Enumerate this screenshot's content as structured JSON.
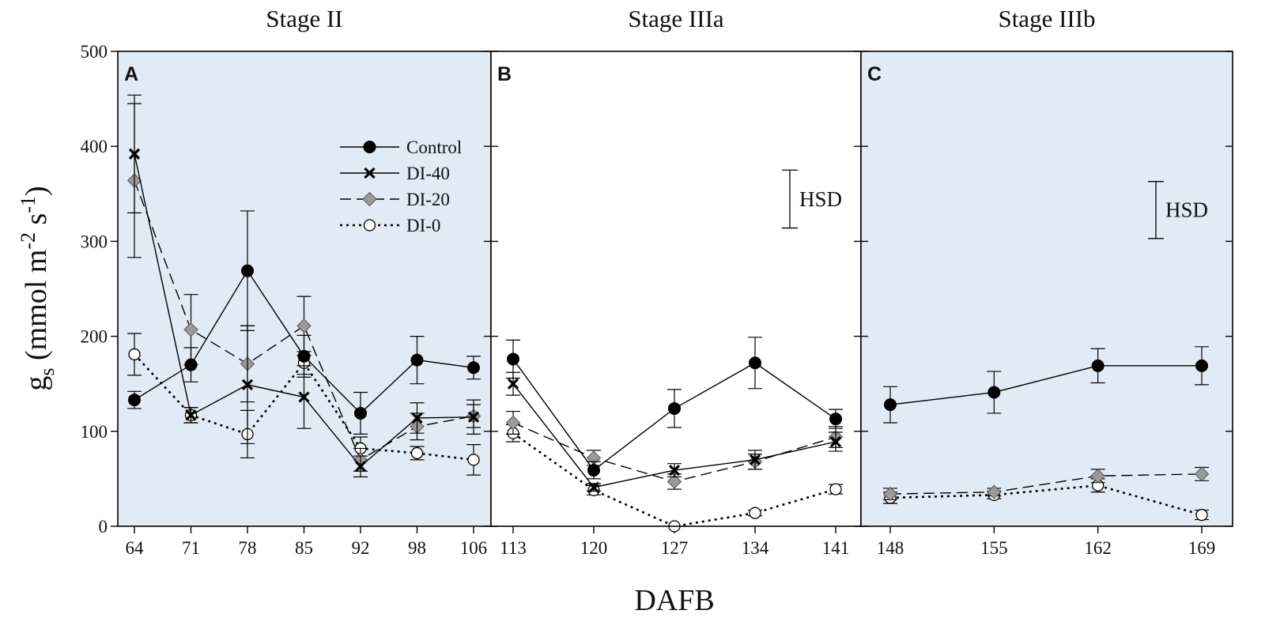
{
  "figure": {
    "y_axis_label": "g",
    "y_axis_label_sub": "s",
    "y_axis_units": "(mmol m",
    "y_axis_units_exp1": "-2",
    "y_axis_units_mid": " s",
    "y_axis_units_exp2": "-1",
    "y_axis_units_close": ")",
    "x_axis_label": "DAFB",
    "hsd_label": "HSD",
    "colors": {
      "panel_shade": "#e1ebf6",
      "marker_gray": "#9a9a9a",
      "line": "#111111"
    }
  },
  "chart_data": [
    {
      "type": "line",
      "panel": "A",
      "title": "Stage II",
      "shaded": true,
      "x": [
        64,
        71,
        78,
        85,
        92,
        98,
        106
      ],
      "ylim": [
        0,
        500
      ],
      "yticks": [
        0,
        100,
        200,
        300,
        400,
        500
      ],
      "series": [
        {
          "name": "Control",
          "values": [
            133,
            170,
            269,
            179,
            119,
            175,
            167
          ],
          "errors": [
            9,
            18,
            63,
            22,
            22,
            25,
            12
          ]
        },
        {
          "name": "DI-40",
          "values": [
            392,
            117,
            149,
            136,
            63,
            114,
            115
          ],
          "errors": [
            62,
            8,
            62,
            33,
            11,
            16,
            18
          ]
        },
        {
          "name": "DI-20",
          "values": [
            364,
            207,
            171,
            211,
            70,
            105,
            116
          ],
          "errors": [
            81,
            37,
            40,
            31,
            12,
            14,
            12
          ]
        },
        {
          "name": "DI-0",
          "values": [
            181,
            117,
            97,
            172,
            82,
            77,
            70
          ],
          "errors": [
            22,
            8,
            25,
            12,
            12,
            7,
            16
          ]
        }
      ],
      "legend": [
        "Control",
        "DI-40",
        "DI-20",
        "DI-0"
      ],
      "legend_position": "top-right"
    },
    {
      "type": "line",
      "panel": "B",
      "title": "Stage IIIa",
      "shaded": false,
      "x": [
        113,
        120,
        127,
        134,
        141
      ],
      "ylim": [
        0,
        500
      ],
      "hsd": [
        314,
        375
      ],
      "series": [
        {
          "name": "Control",
          "values": [
            176,
            59,
            124,
            172,
            113
          ],
          "errors": [
            20,
            9,
            20,
            27,
            10
          ]
        },
        {
          "name": "DI-40",
          "values": [
            150,
            41,
            59,
            70,
            89
          ],
          "errors": [
            12,
            4,
            7,
            10,
            10
          ]
        },
        {
          "name": "DI-20",
          "values": [
            109,
            72,
            47,
            68,
            94
          ],
          "errors": [
            12,
            8,
            8,
            8,
            11
          ]
        },
        {
          "name": "DI-0",
          "values": [
            98,
            38,
            0,
            14,
            39
          ],
          "errors": [
            9,
            5,
            0,
            3,
            5
          ]
        }
      ]
    },
    {
      "type": "line",
      "panel": "C",
      "title": "Stage IIIb",
      "shaded": true,
      "x": [
        148,
        155,
        162,
        169
      ],
      "ylim": [
        0,
        500
      ],
      "hsd": [
        303,
        363
      ],
      "series": [
        {
          "name": "Control",
          "values": [
            128,
            141,
            169,
            169
          ],
          "errors": [
            19,
            22,
            18,
            20
          ]
        },
        {
          "name": "DI-20",
          "values": [
            34,
            36,
            53,
            55
          ],
          "errors": [
            6,
            4,
            7,
            7
          ]
        },
        {
          "name": "DI-0",
          "values": [
            30,
            33,
            43,
            12
          ],
          "errors": [
            6,
            4,
            7,
            5
          ]
        }
      ]
    }
  ]
}
